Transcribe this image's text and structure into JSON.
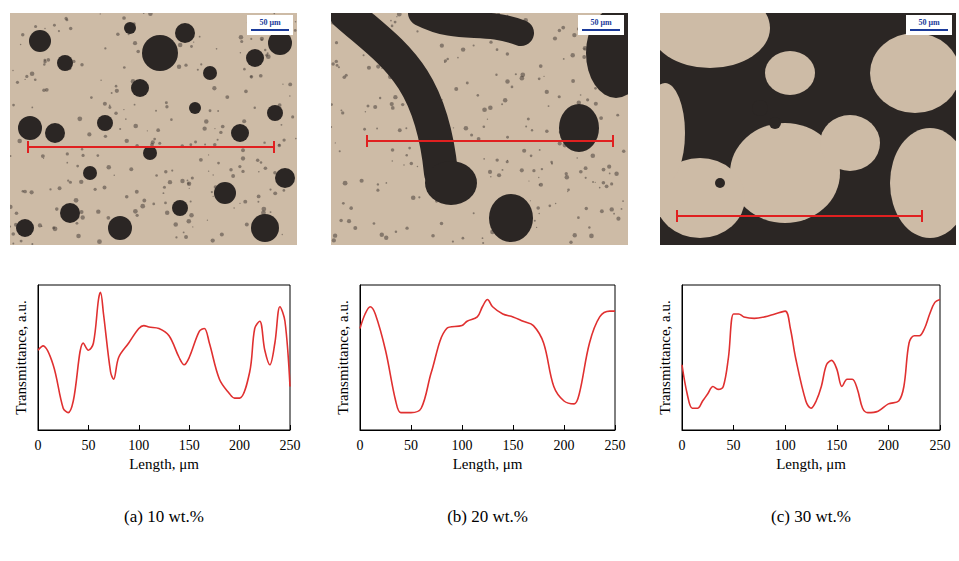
{
  "micrographs": [
    {
      "scale_bar": "50 μm"
    },
    {
      "scale_bar": "50 μm"
    },
    {
      "scale_bar": "50 μm"
    }
  ],
  "chart_data": [
    {
      "type": "line",
      "title": "(a) 10 wt.%",
      "xlabel": "Length, μm",
      "ylabel": "Transmittance, a.u.",
      "color": "#e03030",
      "grid": false,
      "tick_labels": "x",
      "xlim": [
        0,
        250
      ],
      "xticks": [
        0,
        50,
        100,
        150,
        200,
        250
      ],
      "ylim": [
        0,
        1
      ],
      "x": [
        0,
        5,
        15,
        25,
        30,
        35,
        45,
        50,
        55,
        60,
        62,
        65,
        72,
        75,
        80,
        90,
        100,
        105,
        110,
        120,
        130,
        140,
        145,
        150,
        160,
        165,
        170,
        180,
        190,
        195,
        200,
        210,
        215,
        220,
        225,
        230,
        235,
        240,
        245,
        250
      ],
      "values": [
        0.55,
        0.58,
        0.45,
        0.15,
        0.12,
        0.2,
        0.6,
        0.55,
        0.6,
        0.9,
        0.95,
        0.8,
        0.4,
        0.35,
        0.5,
        0.6,
        0.7,
        0.72,
        0.71,
        0.7,
        0.65,
        0.5,
        0.45,
        0.5,
        0.68,
        0.7,
        0.6,
        0.35,
        0.25,
        0.22,
        0.22,
        0.4,
        0.7,
        0.75,
        0.55,
        0.45,
        0.6,
        0.85,
        0.75,
        0.3
      ]
    },
    {
      "type": "line",
      "title": "(b) 20 wt.%",
      "xlabel": "Length, μm",
      "ylabel": "Transmittance, a.u.",
      "color": "#e03030",
      "grid": false,
      "tick_labels": "x",
      "xlim": [
        0,
        250
      ],
      "xticks": [
        0,
        50,
        100,
        150,
        200,
        250
      ],
      "ylim": [
        0,
        1
      ],
      "x": [
        0,
        5,
        10,
        15,
        25,
        35,
        40,
        50,
        60,
        70,
        85,
        100,
        105,
        115,
        120,
        125,
        130,
        140,
        150,
        160,
        170,
        180,
        190,
        200,
        210,
        215,
        225,
        235,
        245,
        250
      ],
      "values": [
        0.7,
        0.8,
        0.85,
        0.8,
        0.55,
        0.2,
        0.12,
        0.12,
        0.15,
        0.4,
        0.7,
        0.72,
        0.75,
        0.78,
        0.85,
        0.9,
        0.85,
        0.8,
        0.78,
        0.75,
        0.72,
        0.6,
        0.3,
        0.2,
        0.18,
        0.25,
        0.6,
        0.78,
        0.82,
        0.82
      ]
    },
    {
      "type": "line",
      "title": "(c) 30 wt.%",
      "xlabel": "Length, μm",
      "ylabel": "Transmittance, a.u.",
      "color": "#e03030",
      "grid": false,
      "tick_labels": "x",
      "xlim": [
        0,
        250
      ],
      "xticks": [
        0,
        50,
        100,
        150,
        200,
        250
      ],
      "ylim": [
        0,
        1
      ],
      "x": [
        0,
        5,
        10,
        15,
        20,
        25,
        30,
        35,
        40,
        45,
        50,
        55,
        60,
        70,
        80,
        90,
        100,
        105,
        110,
        120,
        125,
        130,
        135,
        140,
        145,
        150,
        155,
        160,
        165,
        170,
        175,
        180,
        190,
        200,
        210,
        215,
        220,
        225,
        230,
        235,
        240,
        245,
        250
      ],
      "values": [
        0.45,
        0.25,
        0.15,
        0.15,
        0.2,
        0.25,
        0.3,
        0.28,
        0.3,
        0.5,
        0.8,
        0.8,
        0.78,
        0.77,
        0.78,
        0.8,
        0.82,
        0.7,
        0.5,
        0.2,
        0.15,
        0.2,
        0.3,
        0.45,
        0.48,
        0.42,
        0.3,
        0.35,
        0.35,
        0.28,
        0.15,
        0.12,
        0.13,
        0.18,
        0.2,
        0.3,
        0.6,
        0.65,
        0.65,
        0.7,
        0.8,
        0.88,
        0.9
      ]
    }
  ]
}
